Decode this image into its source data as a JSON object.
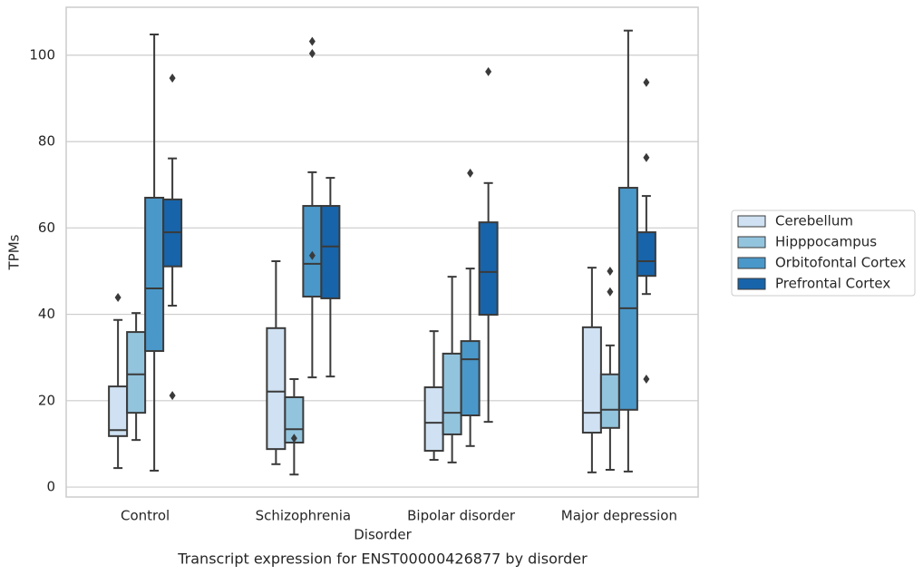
{
  "chart_data": {
    "type": "box",
    "title": "Transcript expression for ENST00000426877 by disorder",
    "xlabel": "Disorder",
    "ylabel": "TPMs",
    "categories": [
      "Control",
      "Schizophrenia",
      "Bipolar disorder",
      "Major depression"
    ],
    "ylim": [
      -2.3,
      111.1
    ],
    "yticks": [
      0,
      20,
      40,
      60,
      80,
      100
    ],
    "grid": true,
    "legend": "right",
    "series": [
      {
        "name": "Cerebellum",
        "color": "#cfe1f2",
        "boxes": [
          {
            "min": 4.4,
            "q1": 11.8,
            "median": 13.2,
            "q3": 23.3,
            "max": 38.7,
            "outliers": [
              43.9
            ]
          },
          {
            "min": 5.3,
            "q1": 8.8,
            "median": 22.1,
            "q3": 36.8,
            "max": 52.3,
            "outliers": []
          },
          {
            "min": 6.3,
            "q1": 8.4,
            "median": 14.9,
            "q3": 23.1,
            "max": 36.1,
            "outliers": []
          },
          {
            "min": 3.4,
            "q1": 12.6,
            "median": 17.2,
            "q3": 37.0,
            "max": 50.8,
            "outliers": []
          }
        ]
      },
      {
        "name": "Hipppocampus",
        "color": "#93c4de",
        "boxes": [
          {
            "min": 10.9,
            "q1": 17.2,
            "median": 26.1,
            "q3": 35.9,
            "max": 40.3,
            "outliers": []
          },
          {
            "min": 2.9,
            "q1": 10.3,
            "median": 13.4,
            "q3": 20.8,
            "max": 25.0,
            "outliers": [
              11.3
            ]
          },
          {
            "min": 5.7,
            "q1": 12.2,
            "median": 17.2,
            "q3": 30.9,
            "max": 48.7,
            "outliers": []
          },
          {
            "min": 4.0,
            "q1": 13.7,
            "median": 17.9,
            "q3": 26.1,
            "max": 32.8,
            "outliers": [
              50.0,
              45.2
            ]
          }
        ]
      },
      {
        "name": "Orbitofontal Cortex",
        "color": "#4a98c9",
        "boxes": [
          {
            "min": 3.8,
            "q1": 31.5,
            "median": 46.0,
            "q3": 67.0,
            "max": 104.8,
            "outliers": []
          },
          {
            "min": 25.4,
            "q1": 44.1,
            "median": 51.7,
            "q3": 65.1,
            "max": 72.9,
            "outliers": [
              53.6,
              103.2,
              100.4
            ]
          },
          {
            "min": 9.5,
            "q1": 16.6,
            "median": 29.6,
            "q3": 33.8,
            "max": 50.6,
            "outliers": [
              72.7
            ]
          },
          {
            "min": 3.6,
            "q1": 17.9,
            "median": 41.4,
            "q3": 69.3,
            "max": 105.7,
            "outliers": []
          }
        ]
      },
      {
        "name": "Prefrontal Cortex",
        "color": "#1764ab",
        "boxes": [
          {
            "min": 42.0,
            "q1": 51.1,
            "median": 59.0,
            "q3": 66.6,
            "max": 76.1,
            "outliers": [
              94.7,
              21.2
            ]
          },
          {
            "min": 25.6,
            "q1": 43.7,
            "median": 55.7,
            "q3": 65.1,
            "max": 71.6,
            "outliers": []
          },
          {
            "min": 15.1,
            "q1": 39.9,
            "median": 49.8,
            "q3": 61.3,
            "max": 70.4,
            "outliers": [
              96.2
            ]
          },
          {
            "min": 44.7,
            "q1": 48.9,
            "median": 52.3,
            "q3": 59.0,
            "max": 67.4,
            "outliers": [
              93.7,
              76.3,
              25.0
            ]
          }
        ]
      }
    ]
  }
}
